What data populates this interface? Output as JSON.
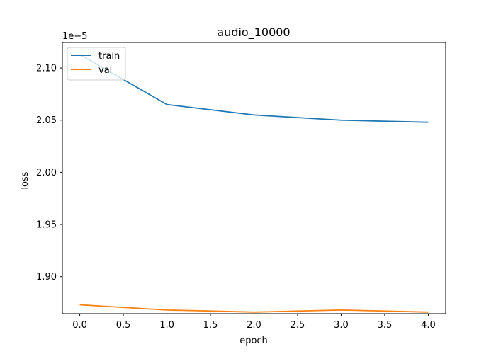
{
  "chart_data": {
    "type": "line",
    "title": "audio_10000",
    "xlabel": "epoch",
    "ylabel": "loss",
    "y_offset_label": "1e−5",
    "x_ticks": [
      0.0,
      0.5,
      1.0,
      1.5,
      2.0,
      2.5,
      3.0,
      3.5,
      4.0
    ],
    "x_tick_labels": [
      "0.0",
      "0.5",
      "1.0",
      "1.5",
      "2.0",
      "2.5",
      "3.0",
      "3.5",
      "4.0"
    ],
    "y_ticks": [
      1.9,
      1.95,
      2.0,
      2.05,
      2.1
    ],
    "y_tick_labels": [
      "1.90",
      "1.95",
      "2.00",
      "2.05",
      "2.10"
    ],
    "xlim": [
      -0.2,
      4.2
    ],
    "ylim": [
      1.8645,
      2.1245
    ],
    "y_scale_note": "values shown in units of 1e-5",
    "grid": false,
    "legend": {
      "position": "top-left"
    },
    "x": [
      0,
      1,
      2,
      3,
      4
    ],
    "series": [
      {
        "name": "train",
        "color": "#1f77b4",
        "values": [
          2.113,
          2.065,
          2.055,
          2.05,
          2.048
        ]
      },
      {
        "name": "val",
        "color": "#ff7f0e",
        "values": [
          1.873,
          1.868,
          1.866,
          1.868,
          1.866
        ]
      }
    ]
  }
}
